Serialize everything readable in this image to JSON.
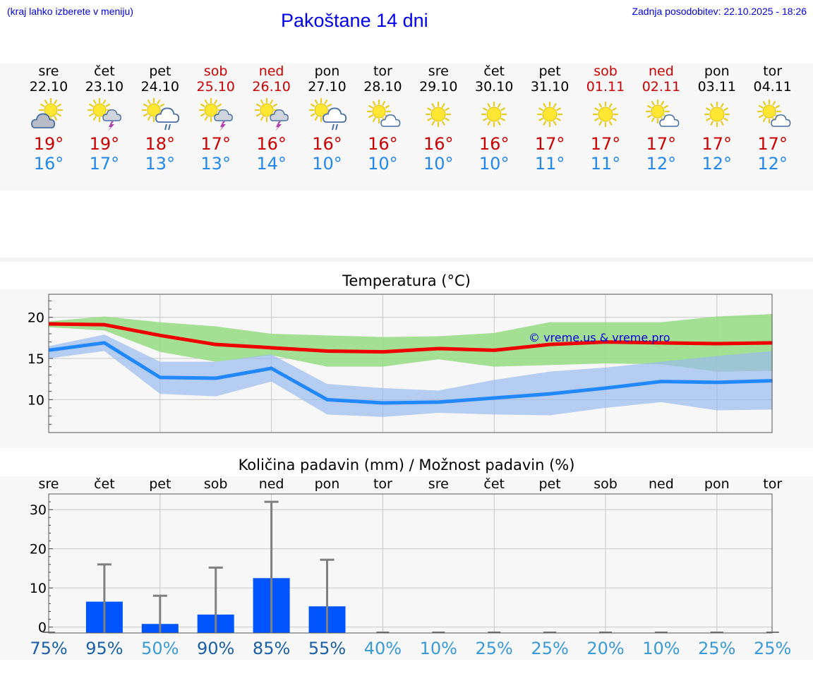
{
  "header": {
    "note": "(kraj lahko izberete v meniju)",
    "title": "Pakoštane 14 dni",
    "updated": "Zadnja posodobitev: 22.10.2025 - 18:26"
  },
  "days": [
    {
      "name": "sre",
      "date": "22.10",
      "weekend": false,
      "icon": "sun-cloud-icon",
      "tmax": "19°",
      "tmin": "16°"
    },
    {
      "name": "čet",
      "date": "23.10",
      "weekend": false,
      "icon": "sun-storm-icon",
      "tmax": "19°",
      "tmin": "17°"
    },
    {
      "name": "pet",
      "date": "24.10",
      "weekend": false,
      "icon": "sun-rain-icon",
      "tmax": "18°",
      "tmin": "13°"
    },
    {
      "name": "sob",
      "date": "25.10",
      "weekend": true,
      "icon": "sun-storm-icon",
      "tmax": "17°",
      "tmin": "13°"
    },
    {
      "name": "ned",
      "date": "26.10",
      "weekend": true,
      "icon": "sun-storm-icon",
      "tmax": "16°",
      "tmin": "14°"
    },
    {
      "name": "pon",
      "date": "27.10",
      "weekend": false,
      "icon": "sun-rain-icon",
      "tmax": "16°",
      "tmin": "10°"
    },
    {
      "name": "tor",
      "date": "28.10",
      "weekend": false,
      "icon": "sun-small-cloud-icon",
      "tmax": "16°",
      "tmin": "10°"
    },
    {
      "name": "sre",
      "date": "29.10",
      "weekend": false,
      "icon": "sun-icon",
      "tmax": "16°",
      "tmin": "10°"
    },
    {
      "name": "čet",
      "date": "30.10",
      "weekend": false,
      "icon": "sun-icon",
      "tmax": "16°",
      "tmin": "10°"
    },
    {
      "name": "pet",
      "date": "31.10",
      "weekend": false,
      "icon": "sun-icon",
      "tmax": "17°",
      "tmin": "11°"
    },
    {
      "name": "sob",
      "date": "01.11",
      "weekend": true,
      "icon": "sun-icon",
      "tmax": "17°",
      "tmin": "11°"
    },
    {
      "name": "ned",
      "date": "02.11",
      "weekend": true,
      "icon": "sun-small-cloud-icon",
      "tmax": "17°",
      "tmin": "12°"
    },
    {
      "name": "pon",
      "date": "03.11",
      "weekend": false,
      "icon": "sun-icon",
      "tmax": "17°",
      "tmin": "12°"
    },
    {
      "name": "tor",
      "date": "04.11",
      "weekend": false,
      "icon": "sun-small-cloud-icon",
      "tmax": "17°",
      "tmin": "12°"
    }
  ],
  "colors": {
    "max_line": "#ee0000",
    "max_band": "#99dd88",
    "min_line": "#2288ff",
    "min_band": "#99bbee",
    "bar": "#0055ff",
    "whisker": "#808080",
    "weekend": "#cc0000"
  },
  "chart_data": [
    {
      "type": "line",
      "title": "Temperatura (°C)",
      "watermark": "© vreme.us & vreme.pro",
      "x": [
        0,
        1,
        2,
        3,
        4,
        5,
        6,
        7,
        8,
        9,
        10,
        11,
        12,
        13
      ],
      "yticks": [
        10,
        15,
        20
      ],
      "ylim": [
        6,
        22.8
      ],
      "series": [
        {
          "name": "max",
          "values": [
            19.2,
            19.1,
            17.8,
            16.7,
            16.3,
            15.9,
            15.8,
            16.2,
            16.0,
            16.7,
            17.0,
            16.9,
            16.8,
            16.9
          ],
          "band_low": [
            18.8,
            18.4,
            15.8,
            14.6,
            15.4,
            14.0,
            14.0,
            14.9,
            14.0,
            14.2,
            14.4,
            14.3,
            13.4,
            13.5
          ],
          "band_high": [
            19.5,
            20.1,
            19.4,
            18.9,
            18.0,
            17.8,
            17.6,
            17.7,
            18.1,
            19.4,
            19.4,
            19.4,
            20.1,
            20.4
          ]
        },
        {
          "name": "min",
          "values": [
            16.0,
            16.9,
            12.7,
            12.6,
            13.8,
            10.0,
            9.6,
            9.7,
            10.2,
            10.7,
            11.4,
            12.2,
            12.1,
            12.3
          ],
          "band_low": [
            15.0,
            15.9,
            10.7,
            10.4,
            12.2,
            8.2,
            7.9,
            8.4,
            8.2,
            8.1,
            9.0,
            9.7,
            8.7,
            8.8
          ],
          "band_high": [
            16.5,
            17.9,
            14.6,
            14.6,
            15.5,
            11.9,
            11.4,
            11.1,
            12.4,
            13.4,
            13.9,
            14.6,
            15.3,
            15.9
          ]
        }
      ]
    },
    {
      "type": "bar",
      "title": "Količina padavin (mm) / Možnost padavin (%)",
      "categories": [
        "sre",
        "čet",
        "pet",
        "sob",
        "ned",
        "pon",
        "tor",
        "sre",
        "čet",
        "pet",
        "sob",
        "ned",
        "pon",
        "tor"
      ],
      "values": [
        0,
        6.5,
        0.8,
        3.2,
        12.5,
        5.3,
        0,
        0,
        0,
        0,
        0,
        0,
        0,
        0
      ],
      "whisker_high": [
        0,
        16,
        8,
        15.2,
        32,
        17.2,
        0,
        0,
        0,
        0,
        0,
        0,
        0,
        0
      ],
      "yticks": [
        0,
        10,
        20,
        30
      ],
      "ylim": [
        -1.5,
        34
      ],
      "probability": [
        "75%",
        "95%",
        "50%",
        "90%",
        "85%",
        "55%",
        "40%",
        "10%",
        "25%",
        "25%",
        "20%",
        "10%",
        "25%",
        "25%"
      ],
      "probability_colors": [
        "#1a5fa8",
        "#1a5fa8",
        "#3a9ad9",
        "#1a5fa8",
        "#1a5fa8",
        "#1a5fa8",
        "#3a9ad9",
        "#3a9ad9",
        "#3a9ad9",
        "#3a9ad9",
        "#3a9ad9",
        "#3a9ad9",
        "#3a9ad9",
        "#3a9ad9"
      ]
    }
  ]
}
